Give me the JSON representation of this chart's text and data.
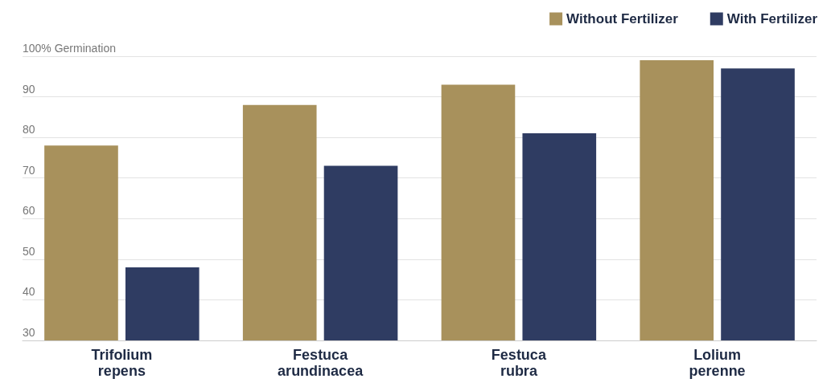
{
  "chart_data": {
    "type": "bar",
    "categories": [
      "Trifolium repens",
      "Festuca arundinacea",
      "Festuca rubra",
      "Lolium perenne"
    ],
    "series": [
      {
        "name": "Without Fertilizer",
        "color": "#a8915c",
        "values": [
          78,
          88,
          93,
          99
        ]
      },
      {
        "name": "With Fertilizer",
        "color": "#2f3c62",
        "values": [
          48,
          73,
          81,
          97
        ]
      }
    ],
    "ylim": [
      30,
      100
    ],
    "yticks": [
      30,
      40,
      50,
      60,
      70,
      80,
      90,
      {
        "value": 100,
        "label": "100% Germination"
      }
    ],
    "grid": "y",
    "legend": "top right"
  }
}
